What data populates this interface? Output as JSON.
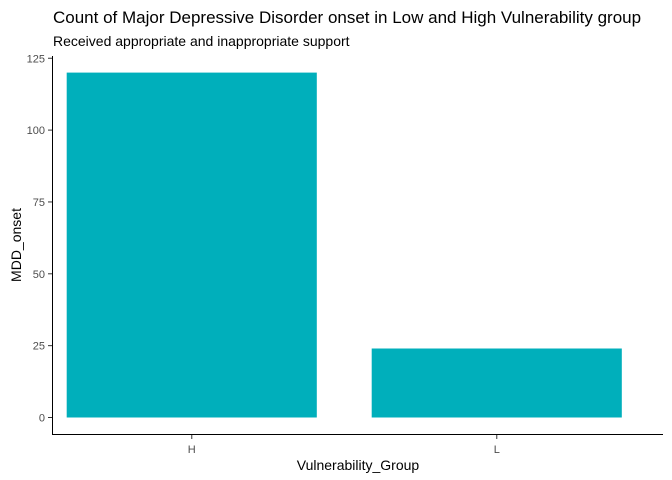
{
  "chart_data": {
    "type": "bar",
    "title": "Count of Major Depressive Disorder onset in Low and High Vulnerability group",
    "subtitle": "Received appropriate and inappropriate support",
    "xlabel": "Vulnerability_Group",
    "ylabel": "MDD_onset",
    "categories": [
      "H",
      "L"
    ],
    "values": [
      120,
      24
    ],
    "ylim": [
      0,
      125
    ],
    "yticks": [
      "0",
      "25",
      "50",
      "75",
      "100",
      "125"
    ],
    "grid": false,
    "legend": "none",
    "bar_color": "#00AFBB"
  }
}
